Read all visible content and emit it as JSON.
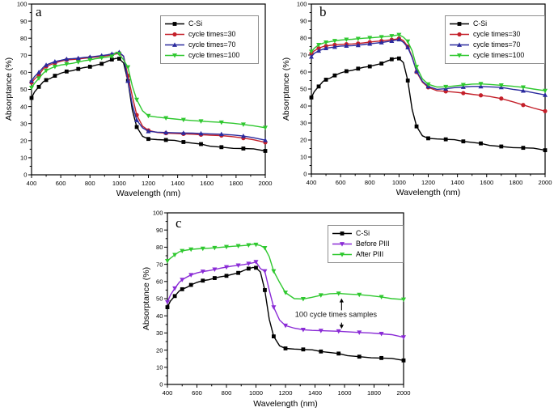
{
  "figure": {
    "background": "#ffffff"
  },
  "axis_style": {
    "tick_color": "#000000",
    "box_color": "#000000"
  },
  "chart_data": [
    {
      "id": "a",
      "type": "line",
      "panel_label": "a",
      "xlabel": "Wavelength (nm)",
      "ylabel": "Absorptance (%)",
      "xlim": [
        400,
        2000
      ],
      "ylim": [
        0,
        100
      ],
      "xticks": [
        400,
        600,
        800,
        1000,
        1200,
        1400,
        1600,
        1800,
        2000
      ],
      "yticks": [
        0,
        10,
        20,
        30,
        40,
        50,
        60,
        70,
        80,
        90,
        100
      ],
      "minor_xtick_step": 100,
      "minor_ytick_step": 5,
      "grid": false,
      "legend_position": "top-right",
      "x": [
        400,
        420,
        450,
        480,
        500,
        530,
        560,
        600,
        640,
        680,
        720,
        760,
        800,
        840,
        880,
        920,
        950,
        980,
        1000,
        1030,
        1060,
        1090,
        1120,
        1160,
        1200,
        1260,
        1320,
        1380,
        1440,
        1500,
        1560,
        1620,
        1700,
        1780,
        1850,
        1920,
        2000
      ],
      "series": [
        {
          "name": "C-Si",
          "color": "#000000",
          "marker": "square",
          "marker_step": 2,
          "values": [
            45,
            48.5,
            51.5,
            54.5,
            55.5,
            56.5,
            58,
            59.5,
            60.5,
            61,
            62,
            62.8,
            63.3,
            64.2,
            65,
            66.5,
            67.5,
            68.2,
            68,
            65.5,
            55,
            38,
            28,
            22.5,
            21,
            20.6,
            20.4,
            20.2,
            19.2,
            18.6,
            18,
            16.8,
            16.2,
            15.5,
            15.4,
            15.2,
            14
          ]
        },
        {
          "name": "cycle times=30",
          "color": "#c4202a",
          "marker": "circle",
          "marker_step": 2,
          "values": [
            54,
            56,
            58.5,
            62,
            63.5,
            64.5,
            65.5,
            66.5,
            67.3,
            67.5,
            67.8,
            68.2,
            68.6,
            69,
            69.3,
            69.8,
            70.3,
            70.8,
            71.3,
            69.5,
            58,
            46,
            35,
            28.5,
            26,
            24.8,
            24.4,
            24.2,
            24,
            23.8,
            23.5,
            23.2,
            23,
            22.3,
            21.5,
            20.5,
            19
          ]
        },
        {
          "name": "cycle times=70",
          "color": "#2b2b9e",
          "marker": "triangle-up",
          "marker_step": 2,
          "values": [
            55,
            57.5,
            60,
            63,
            64.3,
            65.3,
            66.3,
            67,
            67.8,
            68,
            68.3,
            68.7,
            69,
            69.4,
            69.8,
            70.3,
            70.8,
            71.3,
            71.8,
            69.5,
            55,
            41,
            32,
            27.5,
            25.5,
            25,
            24.8,
            24.6,
            24.5,
            24.4,
            24.2,
            24,
            23.8,
            23.3,
            22.7,
            21.7,
            20.3
          ]
        },
        {
          "name": "cycle times=100",
          "color": "#2fc82f",
          "marker": "triangle-down",
          "marker_step": 2,
          "values": [
            51,
            53.5,
            56.5,
            59.5,
            61,
            62.3,
            63.3,
            64.3,
            64.8,
            65.3,
            66,
            66.8,
            67.3,
            68,
            68.5,
            69,
            69.3,
            71.8,
            70.8,
            67.3,
            63,
            52,
            44,
            37.5,
            34.5,
            33.8,
            33.2,
            32.7,
            32.2,
            31.8,
            31.4,
            31.1,
            30.7,
            30.2,
            29.5,
            28.7,
            27.6
          ]
        }
      ]
    },
    {
      "id": "b",
      "type": "line",
      "panel_label": "b",
      "xlabel": "Wavelength (nm)",
      "ylabel": "Absorptance (%)",
      "xlim": [
        400,
        2000
      ],
      "ylim": [
        0,
        100
      ],
      "xticks": [
        400,
        600,
        800,
        1000,
        1200,
        1400,
        1600,
        1800,
        2000
      ],
      "yticks": [
        0,
        10,
        20,
        30,
        40,
        50,
        60,
        70,
        80,
        90,
        100
      ],
      "minor_xtick_step": 100,
      "minor_ytick_step": 5,
      "grid": false,
      "legend_position": "top-right",
      "x": [
        400,
        420,
        450,
        480,
        500,
        530,
        560,
        600,
        640,
        680,
        720,
        760,
        800,
        840,
        880,
        920,
        950,
        980,
        1000,
        1030,
        1060,
        1090,
        1120,
        1160,
        1200,
        1260,
        1320,
        1380,
        1440,
        1500,
        1560,
        1620,
        1700,
        1780,
        1850,
        1920,
        2000
      ],
      "series": [
        {
          "name": "C-Si",
          "color": "#000000",
          "marker": "square",
          "marker_step": 2,
          "values": [
            45,
            48.5,
            51.5,
            54.5,
            55.5,
            56.5,
            58,
            59.5,
            60.5,
            61,
            62,
            62.8,
            63.3,
            64.2,
            65,
            66.5,
            67.5,
            68.2,
            68,
            65.5,
            55,
            38,
            28,
            22.5,
            21,
            20.6,
            20.4,
            20.2,
            19.2,
            18.6,
            18,
            16.8,
            16.2,
            15.5,
            15.4,
            15.2,
            14
          ]
        },
        {
          "name": "cycle times=30",
          "color": "#c4202a",
          "marker": "circle",
          "marker_step": 2,
          "values": [
            71,
            72.5,
            74,
            75,
            75.3,
            75.7,
            76,
            76.3,
            76.4,
            76.5,
            76.8,
            77.2,
            77.6,
            78,
            78.3,
            78.7,
            79,
            79.4,
            79.8,
            78.5,
            75,
            69,
            60,
            54,
            51,
            49,
            48.6,
            48.2,
            47.6,
            46.9,
            46.3,
            45.6,
            44.4,
            42.5,
            40.6,
            38.8,
            37
          ]
        },
        {
          "name": "cycle times=70",
          "color": "#2b2b9e",
          "marker": "triangle-up",
          "marker_step": 2,
          "values": [
            69,
            71,
            72.5,
            73.5,
            74,
            74.4,
            74.8,
            75.3,
            75.4,
            75.5,
            75.8,
            76.2,
            76.6,
            77,
            77.4,
            77.9,
            78.3,
            78.8,
            79.2,
            77.5,
            74.5,
            68.5,
            60.5,
            54.5,
            51.5,
            49.8,
            50.2,
            50.8,
            51.2,
            51.5,
            51.5,
            51.3,
            51,
            49.8,
            49,
            47.8,
            46.5
          ]
        },
        {
          "name": "cycle times=100",
          "color": "#2fc82f",
          "marker": "triangle-down",
          "marker_step": 2,
          "values": [
            72,
            74,
            76,
            77,
            77.4,
            77.9,
            78.3,
            78.8,
            79.1,
            79.3,
            79.6,
            79.9,
            80.1,
            80.4,
            80.6,
            80.9,
            81.2,
            81.6,
            81.9,
            80.5,
            78,
            72.5,
            63,
            56,
            52.8,
            51.2,
            51.3,
            51.8,
            52.4,
            52.9,
            53,
            52.7,
            52.2,
            51.6,
            51,
            50,
            49
          ]
        }
      ]
    },
    {
      "id": "c",
      "type": "line",
      "panel_label": "c",
      "xlabel": "Wavelength (nm)",
      "ylabel": "Absorptance (%)",
      "xlim": [
        400,
        2000
      ],
      "ylim": [
        0,
        100
      ],
      "xticks": [
        400,
        600,
        800,
        1000,
        1200,
        1400,
        1600,
        1800,
        2000
      ],
      "yticks": [
        0,
        10,
        20,
        30,
        40,
        50,
        60,
        70,
        80,
        90,
        100
      ],
      "minor_xtick_step": 100,
      "minor_ytick_step": 5,
      "grid": false,
      "legend_position": "top-right",
      "annotation": {
        "text": "100 cycle times samples",
        "x": 1542,
        "y": 39.5,
        "arrows": [
          {
            "x": 1580,
            "from": 43.2,
            "to": 50.2
          },
          {
            "x": 1580,
            "from": 36,
            "to": 32.4
          }
        ]
      },
      "x": [
        400,
        420,
        450,
        480,
        500,
        530,
        560,
        600,
        640,
        680,
        720,
        760,
        800,
        840,
        880,
        920,
        950,
        980,
        1000,
        1030,
        1060,
        1090,
        1120,
        1160,
        1200,
        1260,
        1320,
        1380,
        1440,
        1500,
        1560,
        1620,
        1700,
        1780,
        1850,
        1920,
        2000
      ],
      "series": [
        {
          "name": "C-Si",
          "color": "#000000",
          "marker": "square",
          "marker_step": 2,
          "values": [
            45,
            48.5,
            51.5,
            54.5,
            55.5,
            56.5,
            58,
            59.5,
            60.5,
            61,
            62,
            62.8,
            63.3,
            64.2,
            65,
            66.5,
            67.5,
            68.2,
            68,
            65.5,
            55,
            38,
            28,
            22.5,
            21,
            20.6,
            20.4,
            20.2,
            19.2,
            18.6,
            18,
            16.8,
            16.2,
            15.5,
            15.4,
            15.2,
            14
          ]
        },
        {
          "name": "Before PIII",
          "color": "#8a2bd6",
          "marker": "triangle-down",
          "marker_step": 2,
          "values": [
            48,
            52,
            56,
            59.5,
            61,
            62.5,
            63.8,
            65,
            65.8,
            66.3,
            67,
            67.8,
            68.4,
            69,
            69.4,
            69.9,
            70.4,
            70.9,
            71.4,
            67.5,
            66,
            55,
            45,
            37.5,
            34.3,
            32.8,
            31.9,
            31.5,
            31.3,
            31.2,
            31,
            30.7,
            30.3,
            30,
            29.5,
            29,
            27.5
          ]
        },
        {
          "name": "After PIII",
          "color": "#2fc82f",
          "marker": "triangle-down",
          "marker_step": 2,
          "values": [
            72,
            73.5,
            75.5,
            77.3,
            77.8,
            78.3,
            78.7,
            79,
            79.2,
            79.4,
            79.6,
            79.9,
            80.2,
            80.5,
            80.7,
            81,
            81.2,
            81.8,
            81.5,
            81,
            79.5,
            74.5,
            66,
            59.5,
            53.5,
            50,
            49.8,
            50.8,
            52,
            52.9,
            53,
            52.7,
            52.3,
            51.7,
            51,
            50,
            49.5
          ]
        }
      ]
    }
  ]
}
